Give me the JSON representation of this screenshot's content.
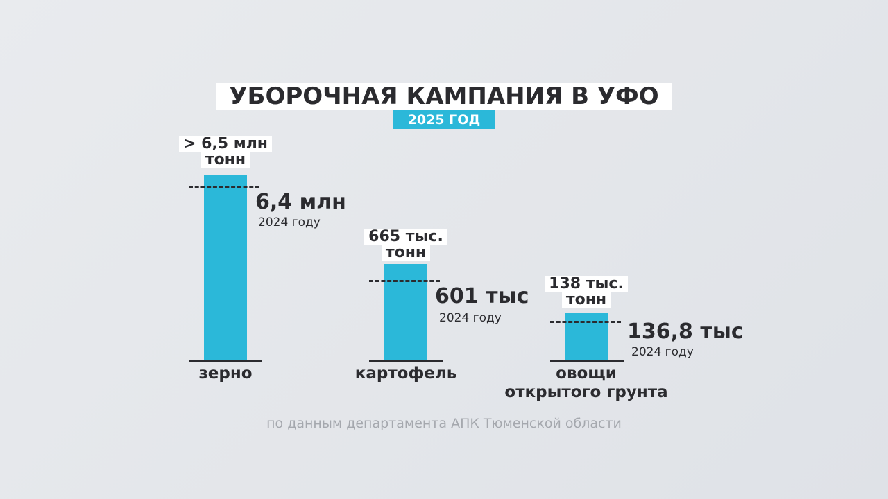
{
  "title": "УБОРОЧНАЯ КАМПАНИЯ В УФО",
  "subtitle": "2025 ГОД",
  "items": [
    {
      "value_2025": [
        "> 6,5 млн",
        "тонн"
      ],
      "value_2024": "6,4 млн",
      "value_2024_caption": "2024 году",
      "category": [
        "зерно"
      ]
    },
    {
      "value_2025": [
        "665 тыс.",
        "тонн"
      ],
      "value_2024": "601 тыс",
      "value_2024_caption": "2024 году",
      "category": [
        "картофель"
      ]
    },
    {
      "value_2025": [
        "138 тыс.",
        "тонн"
      ],
      "value_2024": "136,8 тыс",
      "value_2024_caption": "2024 году",
      "category": [
        "овощи",
        "открытого грунта"
      ]
    }
  ],
  "source": "по данным департамента АПК Тюменской области"
}
